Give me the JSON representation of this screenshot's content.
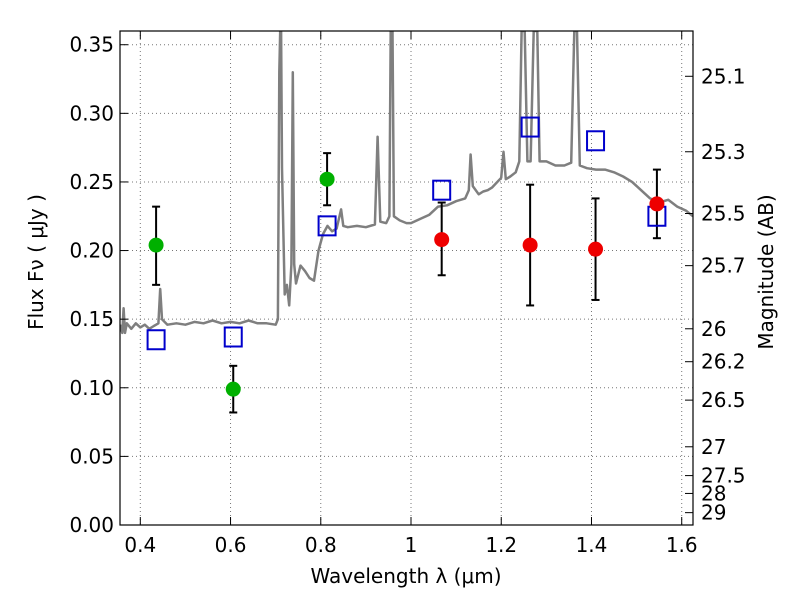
{
  "chart_data": {
    "type": "scatter",
    "xlabel": "Wavelength  λ (μm)",
    "ylabel": "Flux  Fν  ( μJy )",
    "y2label": "Magnitude (AB)",
    "xlim": [
      0.355,
      1.625
    ],
    "ylim": [
      0.0,
      0.36
    ],
    "grid": true,
    "x_ticks": [
      0.4,
      0.6,
      0.8,
      1.0,
      1.2,
      1.4,
      1.6
    ],
    "x_tick_labels": [
      "0.4",
      "0.6",
      "0.8",
      "1",
      "1.2",
      "1.4",
      "1.6"
    ],
    "y_ticks": [
      0.0,
      0.05,
      0.1,
      0.15,
      0.2,
      0.25,
      0.3,
      0.35
    ],
    "y_tick_labels": [
      "0.00",
      "0.05",
      "0.10",
      "0.15",
      "0.20",
      "0.25",
      "0.30",
      "0.35"
    ],
    "magnitude_ticks": [
      {
        "label": "25.1",
        "flux": 0.327
      },
      {
        "label": "25.3",
        "flux": 0.272
      },
      {
        "label": "25.5",
        "flux": 0.227
      },
      {
        "label": "25.7",
        "flux": 0.189
      },
      {
        "label": "26",
        "flux": 0.143
      },
      {
        "label": "26.2",
        "flux": 0.119
      },
      {
        "label": "26.5",
        "flux": 0.091
      },
      {
        "label": "27",
        "flux": 0.057
      },
      {
        "label": "27.5",
        "flux": 0.036
      },
      {
        "label": "28",
        "flux": 0.023
      },
      {
        "label": "29",
        "flux": 0.009
      }
    ],
    "colors": {
      "spectrum": "#7f7f7f",
      "green_points": "#00b000",
      "red_points": "#ee0000",
      "model_boxes": "#0000cc",
      "errorbar": "#000000",
      "grid": "#777777"
    },
    "series": [
      {
        "marker": "circle",
        "color": "#00b000",
        "points": [
          {
            "x": 0.435,
            "y": 0.204,
            "yerr_low": 0.175,
            "yerr_high": 0.232
          },
          {
            "x": 0.606,
            "y": 0.099,
            "yerr_low": 0.082,
            "yerr_high": 0.116
          },
          {
            "x": 0.814,
            "y": 0.252,
            "yerr_low": 0.233,
            "yerr_high": 0.271
          }
        ]
      },
      {
        "marker": "circle",
        "color": "#ee0000",
        "points": [
          {
            "x": 1.068,
            "y": 0.208,
            "yerr_low": 0.182,
            "yerr_high": 0.235
          },
          {
            "x": 1.264,
            "y": 0.204,
            "yerr_low": 0.16,
            "yerr_high": 0.248
          },
          {
            "x": 1.409,
            "y": 0.201,
            "yerr_low": 0.164,
            "yerr_high": 0.238
          },
          {
            "x": 1.545,
            "y": 0.234,
            "yerr_low": 0.209,
            "yerr_high": 0.259
          }
        ]
      },
      {
        "marker": "open-square",
        "color": "#0000cc",
        "points": [
          {
            "x": 0.435,
            "y": 0.135
          },
          {
            "x": 0.606,
            "y": 0.137
          },
          {
            "x": 0.814,
            "y": 0.218
          },
          {
            "x": 1.068,
            "y": 0.244
          },
          {
            "x": 1.264,
            "y": 0.29
          },
          {
            "x": 1.409,
            "y": 0.28
          },
          {
            "x": 1.545,
            "y": 0.225
          }
        ]
      },
      {
        "marker": "line",
        "color": "#7f7f7f",
        "points": [
          [
            0.355,
            0.146
          ],
          [
            0.36,
            0.14
          ],
          [
            0.363,
            0.158
          ],
          [
            0.366,
            0.14
          ],
          [
            0.37,
            0.147
          ],
          [
            0.38,
            0.143
          ],
          [
            0.39,
            0.147
          ],
          [
            0.4,
            0.144
          ],
          [
            0.41,
            0.146
          ],
          [
            0.42,
            0.143
          ],
          [
            0.43,
            0.145
          ],
          [
            0.435,
            0.146
          ],
          [
            0.44,
            0.147
          ],
          [
            0.444,
            0.172
          ],
          [
            0.448,
            0.15
          ],
          [
            0.46,
            0.146
          ],
          [
            0.48,
            0.147
          ],
          [
            0.5,
            0.146
          ],
          [
            0.52,
            0.148
          ],
          [
            0.54,
            0.147
          ],
          [
            0.56,
            0.149
          ],
          [
            0.58,
            0.147
          ],
          [
            0.6,
            0.148
          ],
          [
            0.62,
            0.147
          ],
          [
            0.64,
            0.149
          ],
          [
            0.66,
            0.147
          ],
          [
            0.68,
            0.147
          ],
          [
            0.7,
            0.146
          ],
          [
            0.705,
            0.15
          ],
          [
            0.708,
            0.33
          ],
          [
            0.71,
            0.36
          ],
          [
            0.712,
            0.36
          ],
          [
            0.714,
            0.26
          ],
          [
            0.72,
            0.168
          ],
          [
            0.725,
            0.175
          ],
          [
            0.73,
            0.16
          ],
          [
            0.735,
            0.19
          ],
          [
            0.738,
            0.33
          ],
          [
            0.741,
            0.19
          ],
          [
            0.745,
            0.176
          ],
          [
            0.755,
            0.189
          ],
          [
            0.765,
            0.185
          ],
          [
            0.775,
            0.18
          ],
          [
            0.785,
            0.178
          ],
          [
            0.795,
            0.2
          ],
          [
            0.805,
            0.212
          ],
          [
            0.815,
            0.218
          ],
          [
            0.825,
            0.214
          ],
          [
            0.835,
            0.216
          ],
          [
            0.845,
            0.23
          ],
          [
            0.85,
            0.218
          ],
          [
            0.86,
            0.217
          ],
          [
            0.88,
            0.218
          ],
          [
            0.9,
            0.217
          ],
          [
            0.92,
            0.219
          ],
          [
            0.926,
            0.283
          ],
          [
            0.932,
            0.221
          ],
          [
            0.945,
            0.22
          ],
          [
            0.952,
            0.225
          ],
          [
            0.955,
            0.36
          ],
          [
            0.959,
            0.36
          ],
          [
            0.962,
            0.225
          ],
          [
            0.975,
            0.222
          ],
          [
            0.99,
            0.22
          ],
          [
            1.0,
            0.22
          ],
          [
            1.02,
            0.223
          ],
          [
            1.04,
            0.226
          ],
          [
            1.06,
            0.232
          ],
          [
            1.08,
            0.233
          ],
          [
            1.1,
            0.236
          ],
          [
            1.12,
            0.238
          ],
          [
            1.128,
            0.244
          ],
          [
            1.132,
            0.27
          ],
          [
            1.137,
            0.247
          ],
          [
            1.15,
            0.241
          ],
          [
            1.16,
            0.243
          ],
          [
            1.17,
            0.244
          ],
          [
            1.18,
            0.246
          ],
          [
            1.2,
            0.253
          ],
          [
            1.205,
            0.272
          ],
          [
            1.21,
            0.252
          ],
          [
            1.22,
            0.254
          ],
          [
            1.232,
            0.257
          ],
          [
            1.24,
            0.265
          ],
          [
            1.245,
            0.36
          ],
          [
            1.252,
            0.36
          ],
          [
            1.258,
            0.265
          ],
          [
            1.265,
            0.265
          ],
          [
            1.272,
            0.36
          ],
          [
            1.28,
            0.36
          ],
          [
            1.285,
            0.265
          ],
          [
            1.3,
            0.265
          ],
          [
            1.32,
            0.262
          ],
          [
            1.34,
            0.262
          ],
          [
            1.355,
            0.264
          ],
          [
            1.362,
            0.36
          ],
          [
            1.368,
            0.36
          ],
          [
            1.374,
            0.262
          ],
          [
            1.39,
            0.26
          ],
          [
            1.41,
            0.259
          ],
          [
            1.43,
            0.259
          ],
          [
            1.45,
            0.257
          ],
          [
            1.47,
            0.254
          ],
          [
            1.49,
            0.25
          ],
          [
            1.51,
            0.244
          ],
          [
            1.53,
            0.238
          ],
          [
            1.55,
            0.235
          ],
          [
            1.57,
            0.237
          ],
          [
            1.59,
            0.232
          ],
          [
            1.61,
            0.229
          ],
          [
            1.625,
            0.225
          ]
        ]
      }
    ]
  }
}
